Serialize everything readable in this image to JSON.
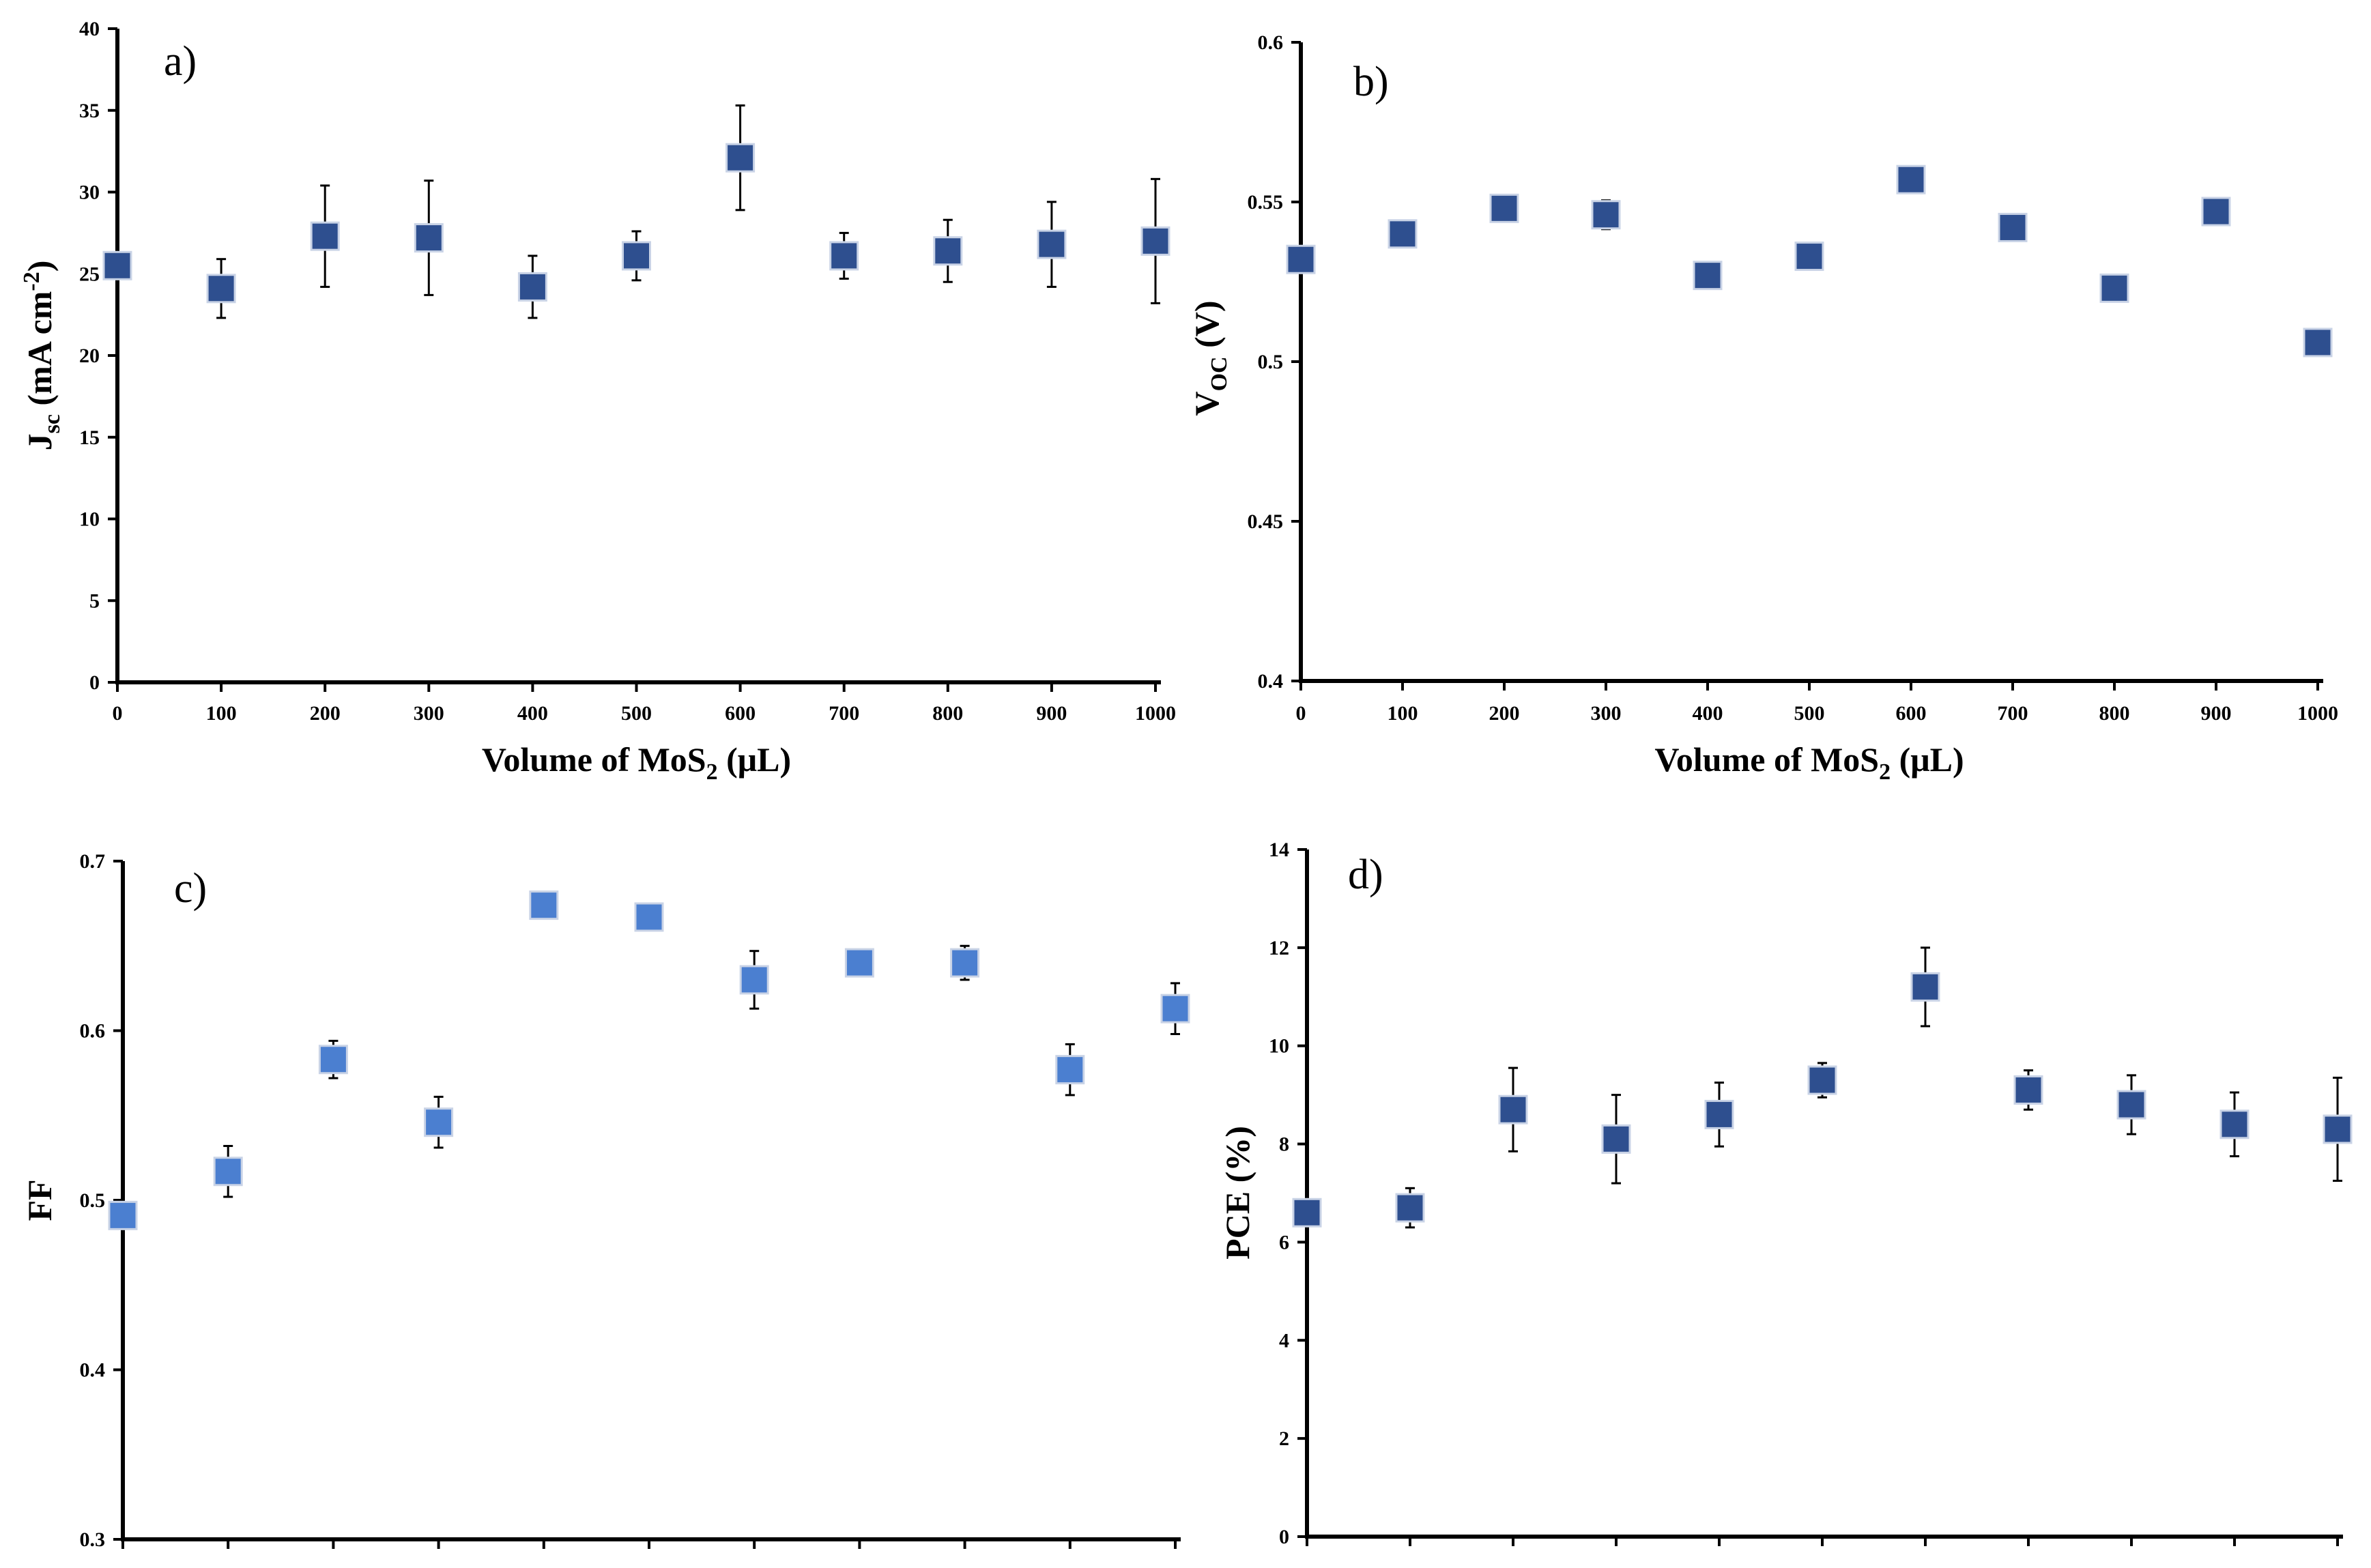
{
  "chart_data": [
    {
      "id": "a",
      "type": "scatter",
      "panel_label": "a)",
      "xlabel": "Volume of MoS",
      "xlabel_sub": "2",
      "xlabel_tail": " (μL)",
      "ylabel_main": "J",
      "ylabel_sub": "sc",
      "ylabel_mid": " (mA cm",
      "ylabel_sup": "-2",
      "ylabel_end": ")",
      "ylim": [
        0,
        40
      ],
      "yticks": [
        "0",
        "5",
        "10",
        "15",
        "20",
        "25",
        "30",
        "35",
        "40"
      ],
      "show_xticklabels": true,
      "marker_color": "#2e4f8f",
      "x": [
        0,
        100,
        200,
        300,
        400,
        500,
        600,
        700,
        800,
        900,
        1000
      ],
      "xtick_labels": [
        "0",
        "100",
        "200",
        "300",
        "400",
        "500",
        "600",
        "700",
        "800",
        "900",
        "1000"
      ],
      "values": [
        25.5,
        24.1,
        27.3,
        27.2,
        24.2,
        26.1,
        32.1,
        26.1,
        26.4,
        26.8,
        27.0
      ],
      "errors": [
        0,
        1.8,
        3.1,
        3.5,
        1.9,
        1.5,
        3.2,
        1.4,
        1.9,
        2.6,
        3.8
      ]
    },
    {
      "id": "b",
      "type": "scatter",
      "panel_label": "b)",
      "xlabel": "Volume of MoS",
      "xlabel_sub": "2",
      "xlabel_tail": " (μL)",
      "ylabel_main": "V",
      "ylabel_sub": "OC",
      "ylabel_mid": " (V)",
      "ylabel_sup": "",
      "ylabel_end": "",
      "ylim": [
        0.4,
        0.6
      ],
      "yticks": [
        "0.4",
        "0.45",
        "0.5",
        "0.55",
        "0.6"
      ],
      "show_xticklabels": true,
      "marker_color": "#2e4f8f",
      "x": [
        0,
        100,
        200,
        300,
        400,
        500,
        600,
        700,
        800,
        900,
        1000
      ],
      "xtick_labels": [
        "0",
        "100",
        "200",
        "300",
        "400",
        "500",
        "600",
        "700",
        "800",
        "900",
        "1000"
      ],
      "values": [
        0.532,
        0.54,
        0.548,
        0.546,
        0.527,
        0.533,
        0.557,
        0.542,
        0.523,
        0.547,
        0.506
      ],
      "errors": [
        0,
        0,
        0,
        0.0045,
        0,
        0,
        0,
        0,
        0,
        0,
        0.004
      ]
    },
    {
      "id": "c",
      "type": "scatter",
      "panel_label": "c)",
      "xlabel": "",
      "xlabel_sub": "",
      "xlabel_tail": "",
      "ylabel_main": "FF",
      "ylabel_sub": "",
      "ylabel_mid": "",
      "ylabel_sup": "",
      "ylabel_end": "",
      "ylim": [
        0.3,
        0.7
      ],
      "yticks": [
        "0.3",
        "0.4",
        "0.5",
        "0.6",
        "0.7"
      ],
      "show_xticklabels": false,
      "marker_color": "#4b7fd0",
      "x": [
        0,
        100,
        200,
        300,
        400,
        500,
        600,
        700,
        800,
        900,
        1000
      ],
      "xtick_labels": [],
      "values": [
        0.491,
        0.517,
        0.583,
        0.546,
        0.674,
        0.667,
        0.63,
        0.64,
        0.64,
        0.577,
        0.613
      ],
      "errors": [
        0,
        0.015,
        0.011,
        0.015,
        0,
        0,
        0.017,
        0,
        0.01,
        0.015,
        0.015
      ]
    },
    {
      "id": "d",
      "type": "scatter",
      "panel_label": "d)",
      "xlabel": "",
      "xlabel_sub": "",
      "xlabel_tail": "",
      "ylabel_main": "PCE (%)",
      "ylabel_sub": "",
      "ylabel_mid": "",
      "ylabel_sup": "",
      "ylabel_end": "",
      "ylim": [
        0,
        14
      ],
      "yticks": [
        "0",
        "2",
        "4",
        "6",
        "8",
        "10",
        "12",
        "14"
      ],
      "show_xticklabels": false,
      "marker_color": "#2e4f8f",
      "x": [
        0,
        100,
        200,
        300,
        400,
        500,
        600,
        700,
        800,
        900,
        1000
      ],
      "xtick_labels": [],
      "values": [
        6.6,
        6.7,
        8.7,
        8.1,
        8.6,
        9.3,
        11.2,
        9.1,
        8.8,
        8.4,
        8.3
      ],
      "errors": [
        0,
        0.4,
        0.85,
        0.9,
        0.65,
        0.35,
        0.8,
        0.4,
        0.6,
        0.65,
        1.05
      ]
    }
  ]
}
